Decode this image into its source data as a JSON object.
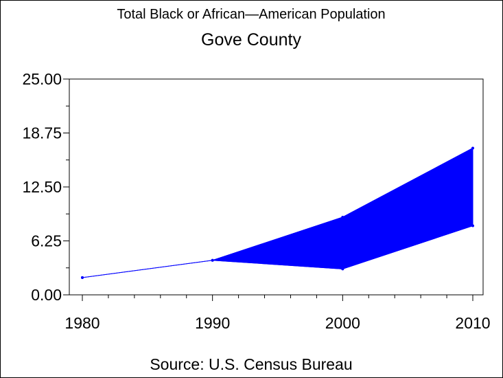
{
  "chart_data": {
    "type": "area",
    "title": "Total Black or African—American Population",
    "subtitle": "Gove County",
    "source": "Source: U.S. Census Bureau",
    "x": [
      1980,
      1990,
      2000,
      2010
    ],
    "x_tick_labels": [
      "1980",
      "1990",
      "2000",
      "2010"
    ],
    "ylim": [
      0,
      25
    ],
    "y_ticks": [
      0,
      6.25,
      12.5,
      18.75,
      25
    ],
    "y_tick_labels": [
      "0.00",
      "6.25",
      "12.50",
      "18.75",
      "25.00"
    ],
    "series": [
      {
        "values": [
          2.0,
          4.0,
          9.0,
          17.0
        ]
      },
      {
        "values": [
          2.0,
          4.0,
          3.0,
          8.0
        ]
      }
    ],
    "color": "#0000ff",
    "grid": false
  }
}
